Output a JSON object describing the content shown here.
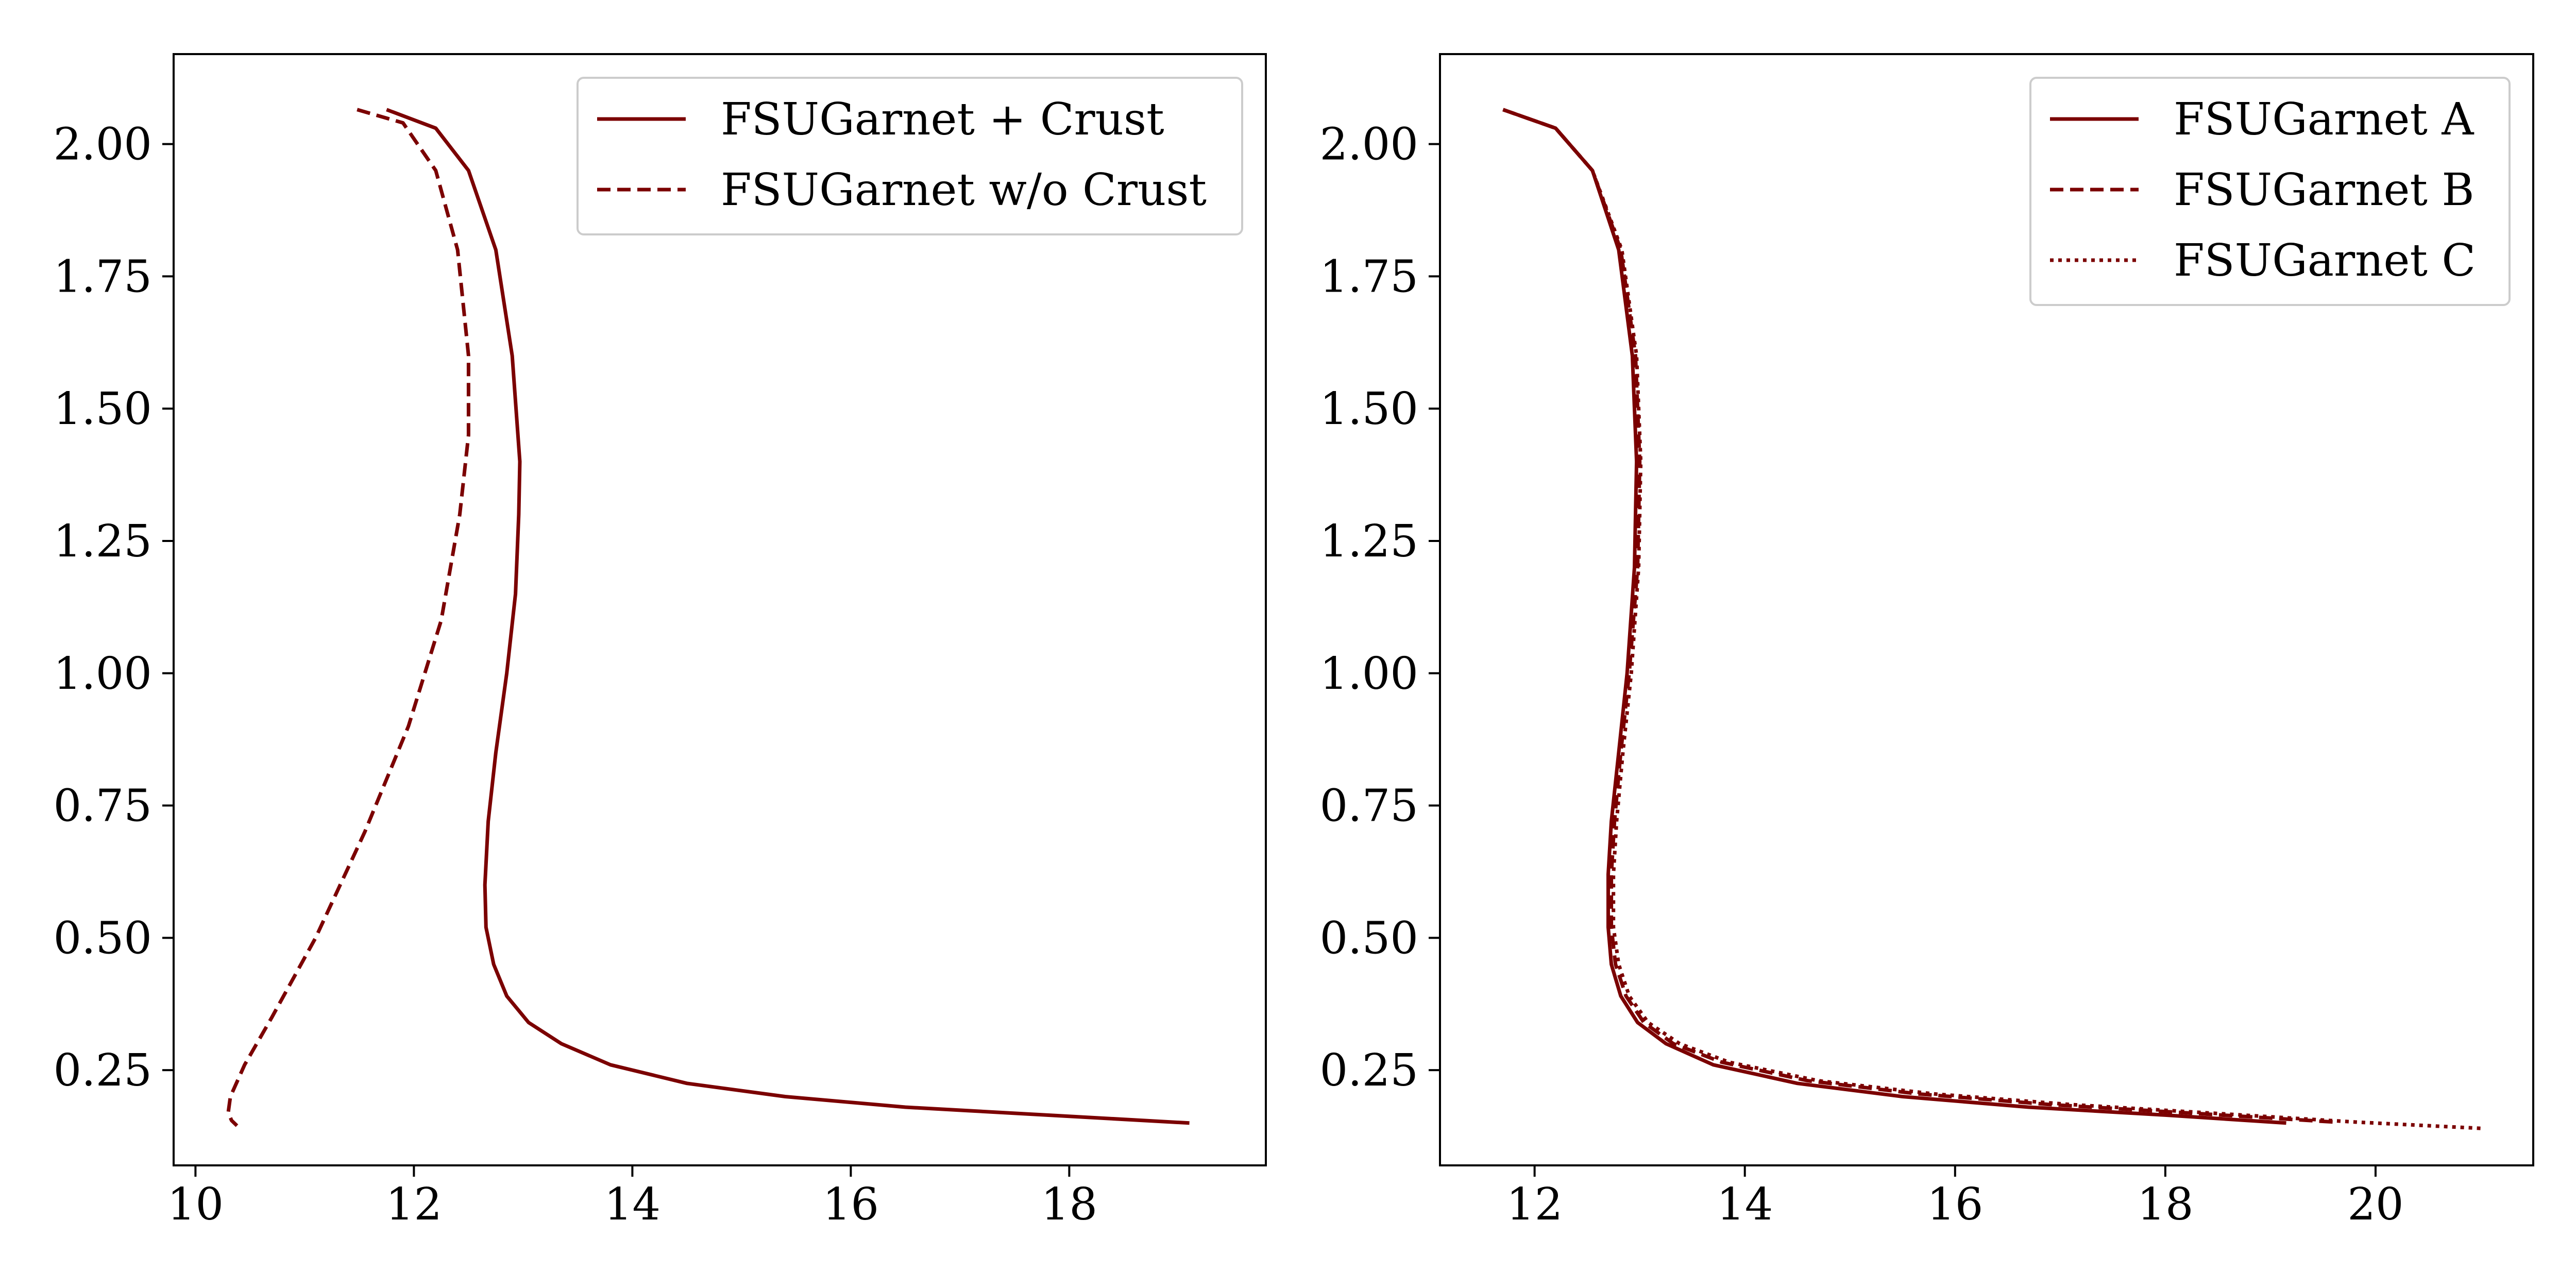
{
  "chart_data": [
    {
      "type": "line",
      "title": "",
      "xlabel": "",
      "ylabel": "",
      "xlim": [
        9.8,
        19.8
      ],
      "ylim": [
        0.07,
        2.17
      ],
      "xticks": [
        10,
        12,
        14,
        16,
        18
      ],
      "xtick_labels": [
        "10",
        "12",
        "14",
        "16",
        "18"
      ],
      "yticks": [
        0.25,
        0.5,
        0.75,
        1.0,
        1.25,
        1.5,
        1.75,
        2.0
      ],
      "ytick_labels": [
        "0.25",
        "0.50",
        "0.75",
        "1.00",
        "1.25",
        "1.50",
        "1.75",
        "2.00"
      ],
      "grid": false,
      "legend_position": "top-right",
      "color": "#7b0000",
      "series": [
        {
          "name": "FSUGarnet + Crust",
          "style": "solid",
          "x": [
            11.75,
            12.2,
            12.5,
            12.75,
            12.9,
            12.97,
            12.96,
            12.93,
            12.85,
            12.75,
            12.68,
            12.65,
            12.66,
            12.73,
            12.85,
            13.05,
            13.35,
            13.8,
            14.5,
            15.4,
            16.5,
            17.8,
            19.1
          ],
          "y": [
            2.065,
            2.03,
            1.95,
            1.8,
            1.6,
            1.4,
            1.3,
            1.15,
            1.0,
            0.85,
            0.72,
            0.6,
            0.52,
            0.45,
            0.39,
            0.34,
            0.3,
            0.26,
            0.225,
            0.2,
            0.18,
            0.165,
            0.15
          ]
        },
        {
          "name": "FSUGarnet w/o Crust",
          "style": "dashed",
          "x": [
            11.48,
            11.9,
            12.2,
            12.4,
            12.5,
            12.5,
            12.42,
            12.25,
            11.95,
            11.55,
            11.1,
            10.7,
            10.45,
            10.32,
            10.3,
            10.33,
            10.38
          ],
          "y": [
            2.065,
            2.04,
            1.95,
            1.8,
            1.6,
            1.45,
            1.3,
            1.1,
            0.9,
            0.7,
            0.5,
            0.35,
            0.26,
            0.2,
            0.17,
            0.155,
            0.145
          ]
        }
      ]
    },
    {
      "type": "line",
      "title": "",
      "xlabel": "",
      "ylabel": "",
      "xlim": [
        11.1,
        21.5
      ],
      "ylim": [
        0.07,
        2.17
      ],
      "xticks": [
        12,
        14,
        16,
        18,
        20
      ],
      "xtick_labels": [
        "12",
        "14",
        "16",
        "18",
        "20"
      ],
      "yticks": [
        0.25,
        0.5,
        0.75,
        1.0,
        1.25,
        1.5,
        1.75,
        2.0
      ],
      "ytick_labels": [
        "0.25",
        "0.50",
        "0.75",
        "1.00",
        "1.25",
        "1.50",
        "1.75",
        "2.00"
      ],
      "grid": false,
      "legend_position": "top-right",
      "color": "#7b0000",
      "series": [
        {
          "name": "FSUGarnet A",
          "style": "solid",
          "x": [
            11.7,
            12.2,
            12.55,
            12.8,
            12.93,
            12.97,
            12.95,
            12.88,
            12.8,
            12.73,
            12.7,
            12.7,
            12.73,
            12.82,
            12.98,
            13.25,
            13.7,
            14.5,
            15.5,
            16.7,
            18.0,
            19.15
          ],
          "y": [
            2.065,
            2.03,
            1.95,
            1.8,
            1.6,
            1.4,
            1.2,
            1.0,
            0.85,
            0.72,
            0.62,
            0.52,
            0.45,
            0.39,
            0.34,
            0.3,
            0.26,
            0.225,
            0.2,
            0.18,
            0.165,
            0.15
          ]
        },
        {
          "name": "FSUGarnet B",
          "style": "dashed",
          "x": [
            11.7,
            12.2,
            12.55,
            12.82,
            12.96,
            13.0,
            12.98,
            12.9,
            12.82,
            12.76,
            12.73,
            12.73,
            12.77,
            12.87,
            13.04,
            13.32,
            13.78,
            14.6,
            15.65,
            16.9,
            18.3,
            19.6
          ],
          "y": [
            2.065,
            2.03,
            1.95,
            1.8,
            1.6,
            1.4,
            1.2,
            1.0,
            0.85,
            0.72,
            0.62,
            0.52,
            0.45,
            0.39,
            0.34,
            0.3,
            0.265,
            0.23,
            0.205,
            0.185,
            0.168,
            0.152
          ]
        },
        {
          "name": "FSUGarnet C",
          "style": "dotted",
          "x": [
            11.7,
            12.2,
            12.55,
            12.83,
            12.97,
            13.01,
            12.99,
            12.92,
            12.84,
            12.78,
            12.75,
            12.75,
            12.8,
            12.9,
            13.08,
            13.38,
            13.85,
            14.7,
            15.8,
            17.1,
            18.5,
            19.8,
            21.0
          ],
          "y": [
            2.065,
            2.03,
            1.95,
            1.8,
            1.6,
            1.4,
            1.2,
            1.0,
            0.85,
            0.72,
            0.62,
            0.52,
            0.45,
            0.39,
            0.34,
            0.3,
            0.265,
            0.23,
            0.205,
            0.185,
            0.168,
            0.152,
            0.14
          ]
        }
      ]
    }
  ]
}
